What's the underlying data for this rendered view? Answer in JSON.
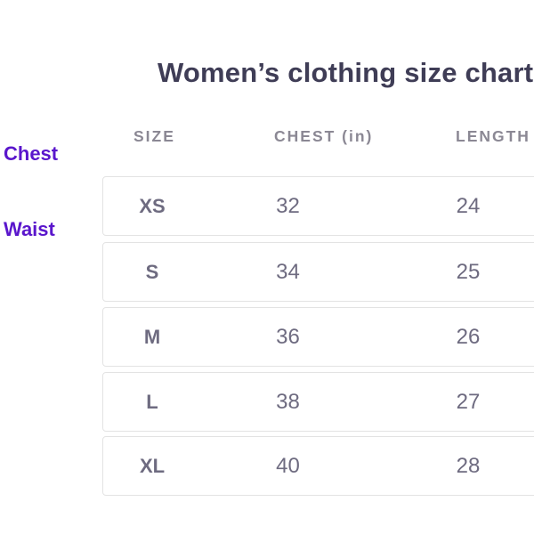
{
  "title": "Women’s clothing size chart",
  "annotations": {
    "chest": "Chest",
    "waist": "Waist"
  },
  "chart_data": {
    "type": "table",
    "title": "Women’s clothing size chart",
    "columns": [
      "SIZE",
      "CHEST (in)",
      "LENGTH (in)"
    ],
    "rows": [
      [
        "XS",
        "32",
        "24"
      ],
      [
        "S",
        "34",
        "25"
      ],
      [
        "M",
        "36",
        "26"
      ],
      [
        "L",
        "38",
        "27"
      ],
      [
        "XL",
        "40",
        "28"
      ]
    ],
    "layout": "rows are separate bordered cards; table clipped by right edge of 600px viewport"
  },
  "colors": {
    "background": "#ffffff",
    "title_text": "#3f3d56",
    "header_text": "#8b8894",
    "cell_text": "#6e6b80",
    "accent_purple": "#5a16cc",
    "row_border": "#e3e3e3"
  }
}
